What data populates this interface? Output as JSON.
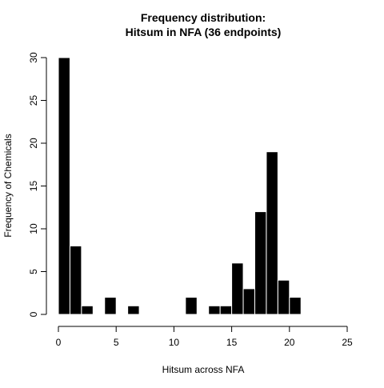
{
  "chart_data": {
    "type": "bar",
    "title_line1": "Frequency distribution:",
    "title_line2": "Hitsum in NFA (36 endpoints)",
    "xlabel": "Hitsum across NFA",
    "ylabel": "Frequency of Chemicals",
    "xlim": [
      0,
      25
    ],
    "ylim": [
      0,
      30
    ],
    "x_ticks": [
      0,
      5,
      10,
      15,
      20,
      25
    ],
    "y_ticks": [
      0,
      5,
      10,
      15,
      20,
      25,
      30
    ],
    "bar_color": "#000000",
    "bar_border_color": "#ffffff",
    "bars": [
      {
        "start": 0,
        "end": 1,
        "value": 30
      },
      {
        "start": 1,
        "end": 2,
        "value": 8
      },
      {
        "start": 2,
        "end": 3,
        "value": 1
      },
      {
        "start": 4,
        "end": 5,
        "value": 2
      },
      {
        "start": 6,
        "end": 7,
        "value": 1
      },
      {
        "start": 11,
        "end": 12,
        "value": 2
      },
      {
        "start": 13,
        "end": 14,
        "value": 1
      },
      {
        "start": 14,
        "end": 15,
        "value": 1
      },
      {
        "start": 15,
        "end": 16,
        "value": 6
      },
      {
        "start": 16,
        "end": 17,
        "value": 3
      },
      {
        "start": 17,
        "end": 18,
        "value": 12
      },
      {
        "start": 18,
        "end": 19,
        "value": 19
      },
      {
        "start": 19,
        "end": 20,
        "value": 4
      },
      {
        "start": 20,
        "end": 21,
        "value": 2
      }
    ]
  }
}
